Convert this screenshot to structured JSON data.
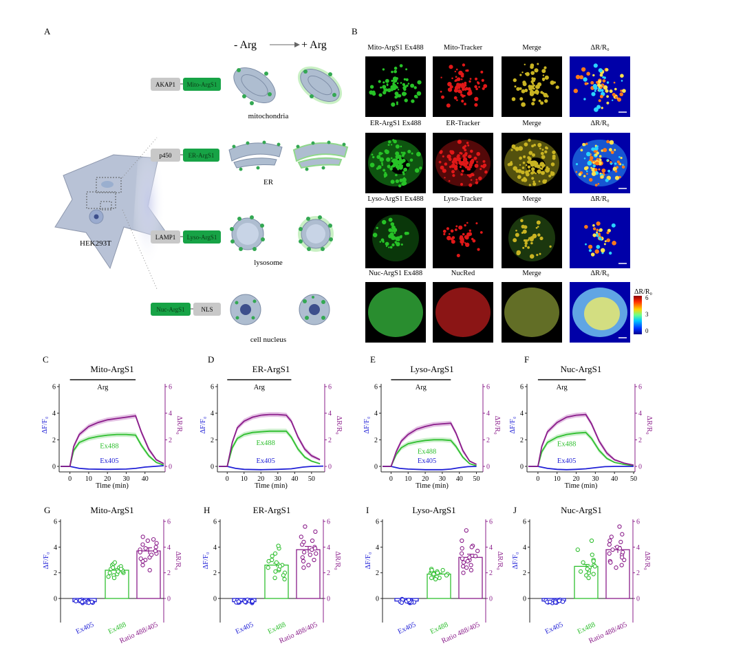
{
  "panel_letters": [
    "A",
    "B",
    "C",
    "D",
    "E",
    "F",
    "G",
    "H",
    "I",
    "J"
  ],
  "panelA": {
    "minus_arg": "- Arg",
    "plus_arg": "+ Arg",
    "cell_label": "HEK293T",
    "rows": [
      {
        "left_box": "AKAP1",
        "right_box": "Mito-ArgS1",
        "organelle": "mitochondria"
      },
      {
        "left_box": "p450",
        "right_box": "ER-ArgS1",
        "organelle": "ER"
      },
      {
        "left_box": "LAMP1",
        "right_box": "Lyso-ArgS1",
        "organelle": "lysosome"
      },
      {
        "left_box": "Nuc-ArgS1",
        "right_box": "NLS",
        "organelle": "cell nucleus"
      }
    ]
  },
  "panelB": {
    "rows": [
      [
        "Mito-ArgS1 Ex488",
        "Mito-Tracker",
        "Merge",
        "ΔR/R₀"
      ],
      [
        "ER-ArgS1 Ex488",
        "ER-Tracker",
        "Merge",
        "ΔR/R₀"
      ],
      [
        "Lyso-ArgS1 Ex488",
        "Lyso-Tracker",
        "Merge",
        "ΔR/R₀"
      ],
      [
        "Nuc-ArgS1 Ex488",
        "NucRed",
        "Merge",
        "ΔR/R₀"
      ]
    ],
    "colorbar": {
      "title": "ΔR/R₀",
      "ticks": [
        "6",
        "3",
        "0"
      ]
    }
  },
  "colors": {
    "ex405": "#1f1fd6",
    "ex488": "#2fbf2f",
    "ratio": "#8a1c8a",
    "ratio_band": "#d8a8d8",
    "ex488_band": "#b8e8b8"
  },
  "chart_data": [
    {
      "type": "line",
      "panel": "C",
      "title": "Mito-ArgS1",
      "stim": "Arg",
      "xlabel": "Time (min)",
      "ylabel_left": "ΔF/F₀",
      "ylabel_right": "ΔR/R₀",
      "xlim": [
        -5,
        50
      ],
      "xticks": [
        0,
        10,
        20,
        30,
        40
      ],
      "ylim": [
        -0.5,
        6
      ],
      "yticks": [
        0,
        2,
        4,
        6
      ],
      "arg_window": [
        0,
        35
      ],
      "series": [
        {
          "name": "Ex488",
          "x": [
            -5,
            0,
            2,
            5,
            10,
            15,
            20,
            25,
            30,
            35,
            38,
            42,
            46,
            50
          ],
          "y": [
            0,
            0,
            1.2,
            1.8,
            2.1,
            2.25,
            2.35,
            2.4,
            2.4,
            2.35,
            1.6,
            0.8,
            0.3,
            0.1
          ]
        },
        {
          "name": "Ex405",
          "x": [
            -5,
            0,
            5,
            10,
            20,
            30,
            35,
            40,
            45,
            50
          ],
          "y": [
            0,
            0,
            -0.15,
            -0.2,
            -0.22,
            -0.2,
            -0.15,
            -0.05,
            0,
            0.05
          ]
        },
        {
          "name": "",
          "x": [
            -5,
            0,
            2,
            5,
            10,
            15,
            20,
            25,
            30,
            35,
            38,
            42,
            46,
            50
          ],
          "y": [
            0,
            0,
            1.5,
            2.4,
            3.0,
            3.3,
            3.5,
            3.6,
            3.7,
            3.8,
            2.6,
            1.3,
            0.5,
            0.2
          ]
        }
      ]
    },
    {
      "type": "line",
      "panel": "D",
      "title": "ER-ArgS1",
      "stim": "Arg",
      "xlabel": "Time (min)",
      "ylabel_left": "ΔF/F₀",
      "ylabel_right": "ΔR/R₀",
      "xlim": [
        -5,
        57
      ],
      "xticks": [
        0,
        10,
        20,
        30,
        40,
        50
      ],
      "ylim": [
        -0.5,
        6
      ],
      "yticks": [
        0,
        2,
        4,
        6
      ],
      "arg_window": [
        0,
        38
      ],
      "series": [
        {
          "name": "Ex488",
          "x": [
            -5,
            0,
            3,
            6,
            10,
            15,
            20,
            25,
            30,
            35,
            38,
            42,
            46,
            50,
            55
          ],
          "y": [
            0,
            0,
            1.4,
            2.1,
            2.4,
            2.55,
            2.6,
            2.65,
            2.65,
            2.65,
            2.2,
            1.3,
            0.7,
            0.4,
            0.2
          ]
        },
        {
          "name": "Ex405",
          "x": [
            -5,
            0,
            5,
            10,
            20,
            30,
            38,
            45,
            50,
            57
          ],
          "y": [
            0,
            0,
            -0.15,
            -0.22,
            -0.25,
            -0.22,
            -0.18,
            -0.05,
            0,
            0.02
          ]
        },
        {
          "name": "",
          "x": [
            -5,
            0,
            3,
            6,
            10,
            15,
            20,
            25,
            30,
            35,
            38,
            42,
            46,
            50,
            55
          ],
          "y": [
            0,
            0,
            1.8,
            2.9,
            3.4,
            3.7,
            3.85,
            3.9,
            3.9,
            3.85,
            3.4,
            2.2,
            1.3,
            0.8,
            0.5
          ]
        }
      ]
    },
    {
      "type": "line",
      "panel": "E",
      "title": "Lyso-ArgS1",
      "stim": "Arg",
      "xlabel": "Time (min)",
      "ylabel_left": "ΔF/F₀",
      "ylabel_right": "ΔR/R₀",
      "xlim": [
        -5,
        53
      ],
      "xticks": [
        0,
        10,
        20,
        30,
        40,
        50
      ],
      "ylim": [
        -0.5,
        6
      ],
      "yticks": [
        0,
        2,
        4,
        6
      ],
      "arg_window": [
        0,
        35
      ],
      "series": [
        {
          "name": "Ex488",
          "x": [
            -5,
            0,
            3,
            6,
            10,
            15,
            20,
            25,
            30,
            35,
            38,
            42,
            46,
            50
          ],
          "y": [
            0,
            0,
            0.9,
            1.4,
            1.7,
            1.85,
            1.95,
            2.0,
            2.0,
            1.95,
            1.5,
            0.7,
            0.2,
            0.05
          ]
        },
        {
          "name": "Ex405",
          "x": [
            -5,
            0,
            5,
            10,
            20,
            30,
            35,
            40,
            45,
            50
          ],
          "y": [
            0,
            0,
            -0.15,
            -0.2,
            -0.25,
            -0.25,
            -0.2,
            -0.1,
            -0.02,
            0
          ]
        },
        {
          "name": "",
          "x": [
            -5,
            0,
            3,
            6,
            10,
            15,
            20,
            25,
            30,
            35,
            38,
            42,
            46,
            50
          ],
          "y": [
            0,
            0,
            1.1,
            1.9,
            2.4,
            2.8,
            3.0,
            3.15,
            3.2,
            3.25,
            2.5,
            1.2,
            0.4,
            0.15
          ]
        }
      ]
    },
    {
      "type": "line",
      "panel": "F",
      "title": "Nuc-ArgS1",
      "stim": "Arg",
      "xlabel": "Time (min)",
      "ylabel_left": "ΔF/F₀",
      "ylabel_right": "ΔR/R₀",
      "xlim": [
        -5,
        50
      ],
      "xticks": [
        0,
        10,
        20,
        30,
        40,
        50
      ],
      "ylim": [
        -0.5,
        6
      ],
      "yticks": [
        0,
        2,
        4,
        6
      ],
      "arg_window": [
        0,
        25
      ],
      "series": [
        {
          "name": "Ex488",
          "x": [
            -5,
            0,
            2,
            5,
            10,
            15,
            20,
            25,
            28,
            32,
            36,
            40,
            45,
            50
          ],
          "y": [
            0,
            0,
            1.1,
            1.8,
            2.2,
            2.4,
            2.5,
            2.55,
            2.1,
            1.2,
            0.6,
            0.3,
            0.15,
            0.05
          ]
        },
        {
          "name": "Ex405",
          "x": [
            -5,
            0,
            5,
            10,
            15,
            20,
            25,
            30,
            35,
            40,
            50
          ],
          "y": [
            0,
            0,
            -0.15,
            -0.22,
            -0.25,
            -0.22,
            -0.18,
            -0.1,
            -0.02,
            0,
            0
          ]
        },
        {
          "name": "",
          "x": [
            -5,
            0,
            2,
            5,
            10,
            15,
            20,
            25,
            28,
            32,
            36,
            40,
            45,
            50
          ],
          "y": [
            0,
            0,
            1.5,
            2.6,
            3.3,
            3.7,
            3.85,
            3.9,
            3.2,
            1.9,
            1.0,
            0.5,
            0.25,
            0.1
          ]
        }
      ]
    },
    {
      "type": "bar",
      "panel": "G",
      "title": "Mito-ArgS1",
      "categories": [
        "Ex405",
        "Ex488",
        "Ratio 488/405"
      ],
      "values": [
        -0.25,
        2.2,
        3.7
      ],
      "errors": [
        0.03,
        0.1,
        0.25
      ],
      "ylim": [
        -1,
        6
      ],
      "yticks": [
        0,
        2,
        4,
        6
      ],
      "ylabel_left": "ΔF/F₀",
      "ylabel_right": "ΔR/R₀",
      "points": [
        [
          -0.1,
          -0.2,
          -0.3,
          -0.35,
          -0.25,
          -0.15,
          -0.3,
          -0.2,
          -0.28,
          -0.22,
          -0.32,
          -0.18,
          -0.26,
          -0.3,
          -0.24,
          -0.21,
          -0.27,
          -0.33
        ],
        [
          2.0,
          2.3,
          2.6,
          1.8,
          2.1,
          2.4,
          2.2,
          1.6,
          2.7,
          2.5,
          2.0,
          2.3,
          1.9,
          2.2,
          2.4,
          2.1,
          1.7,
          2.8
        ],
        [
          3.0,
          3.8,
          4.5,
          2.6,
          3.5,
          4.0,
          3.2,
          4.8,
          2.9,
          3.7,
          4.2,
          3.4,
          2.2,
          3.9,
          4.6,
          3.6,
          3.1,
          4.3
        ]
      ]
    },
    {
      "type": "bar",
      "panel": "H",
      "title": "ER-ArgS1",
      "categories": [
        "Ex405",
        "Ex488",
        "Ratio 488/405"
      ],
      "values": [
        -0.25,
        2.6,
        3.8
      ],
      "errors": [
        0.03,
        0.15,
        0.25
      ],
      "ylim": [
        -1,
        6
      ],
      "yticks": [
        0,
        2,
        4,
        6
      ],
      "ylabel_left": "ΔF/F₀",
      "ylabel_right": "ΔR/R₀",
      "points": [
        [
          -0.1,
          -0.2,
          -0.3,
          -0.35,
          -0.25,
          -0.15,
          -0.3,
          -0.2,
          -0.28,
          -0.22,
          -0.32,
          -0.18,
          -0.26,
          -0.3,
          -0.24
        ],
        [
          1.6,
          2.4,
          3.5,
          2.0,
          2.8,
          3.9,
          2.2,
          1.8,
          3.0,
          2.6,
          4.1,
          2.3,
          1.5,
          2.9,
          3.3,
          2.1,
          2.5
        ],
        [
          2.6,
          3.8,
          5.2,
          3.0,
          4.2,
          4.8,
          3.4,
          2.9,
          4.5,
          3.6,
          5.6,
          3.2,
          2.4,
          4.0,
          3.9,
          3.5,
          4.4
        ]
      ]
    },
    {
      "type": "bar",
      "panel": "I",
      "title": "Lyso-ArgS1",
      "categories": [
        "Ex405",
        "Ex488",
        "Ratio 488/405"
      ],
      "values": [
        -0.2,
        1.9,
        3.2
      ],
      "errors": [
        0.03,
        0.08,
        0.25
      ],
      "ylim": [
        -1,
        6
      ],
      "yticks": [
        0,
        2,
        4,
        6
      ],
      "ylabel_left": "ΔF/F₀",
      "ylabel_right": "ΔR/R₀",
      "points": [
        [
          -0.05,
          -0.15,
          -0.3,
          -0.35,
          -0.25,
          -0.1,
          -0.3,
          -0.2,
          -0.28,
          -0.22,
          -0.32,
          -0.18,
          -0.26,
          -0.3,
          -0.24,
          -0.12
        ],
        [
          1.6,
          1.9,
          2.2,
          1.8,
          2.0,
          2.1,
          1.7,
          1.5,
          2.3,
          1.9,
          2.0,
          1.8,
          2.1,
          1.6,
          2.2,
          1.9,
          2.0
        ],
        [
          2.4,
          3.1,
          4.1,
          2.8,
          3.5,
          2.0,
          3.9,
          2.6,
          5.3,
          3.0,
          4.5,
          2.2,
          3.3,
          3.7,
          2.9,
          3.2,
          4.0,
          2.5
        ]
      ]
    },
    {
      "type": "bar",
      "panel": "J",
      "title": "Nuc-ArgS1",
      "categories": [
        "Ex405",
        "Ex488",
        "Ratio 488/405"
      ],
      "values": [
        -0.2,
        2.5,
        3.8
      ],
      "errors": [
        0.03,
        0.15,
        0.25
      ],
      "ylim": [
        -1,
        6
      ],
      "yticks": [
        0,
        2,
        4,
        6
      ],
      "ylabel_left": "ΔF/F₀",
      "ylabel_right": "ΔR/R₀",
      "points": [
        [
          -0.1,
          -0.2,
          -0.3,
          -0.35,
          -0.25,
          -0.15,
          -0.3,
          -0.2,
          -0.28,
          -0.22,
          -0.32,
          -0.18,
          -0.26,
          -0.3
        ],
        [
          1.8,
          2.4,
          3.4,
          2.0,
          2.8,
          4.5,
          2.2,
          1.6,
          3.0,
          2.6,
          3.8,
          2.3,
          1.9,
          2.9,
          2.1,
          2.5
        ],
        [
          2.6,
          3.8,
          5.6,
          3.0,
          4.2,
          4.8,
          3.4,
          2.9,
          4.5,
          3.6,
          5.0,
          3.2,
          2.4,
          4.0,
          3.9,
          3.5,
          4.4,
          2.8
        ]
      ]
    }
  ]
}
